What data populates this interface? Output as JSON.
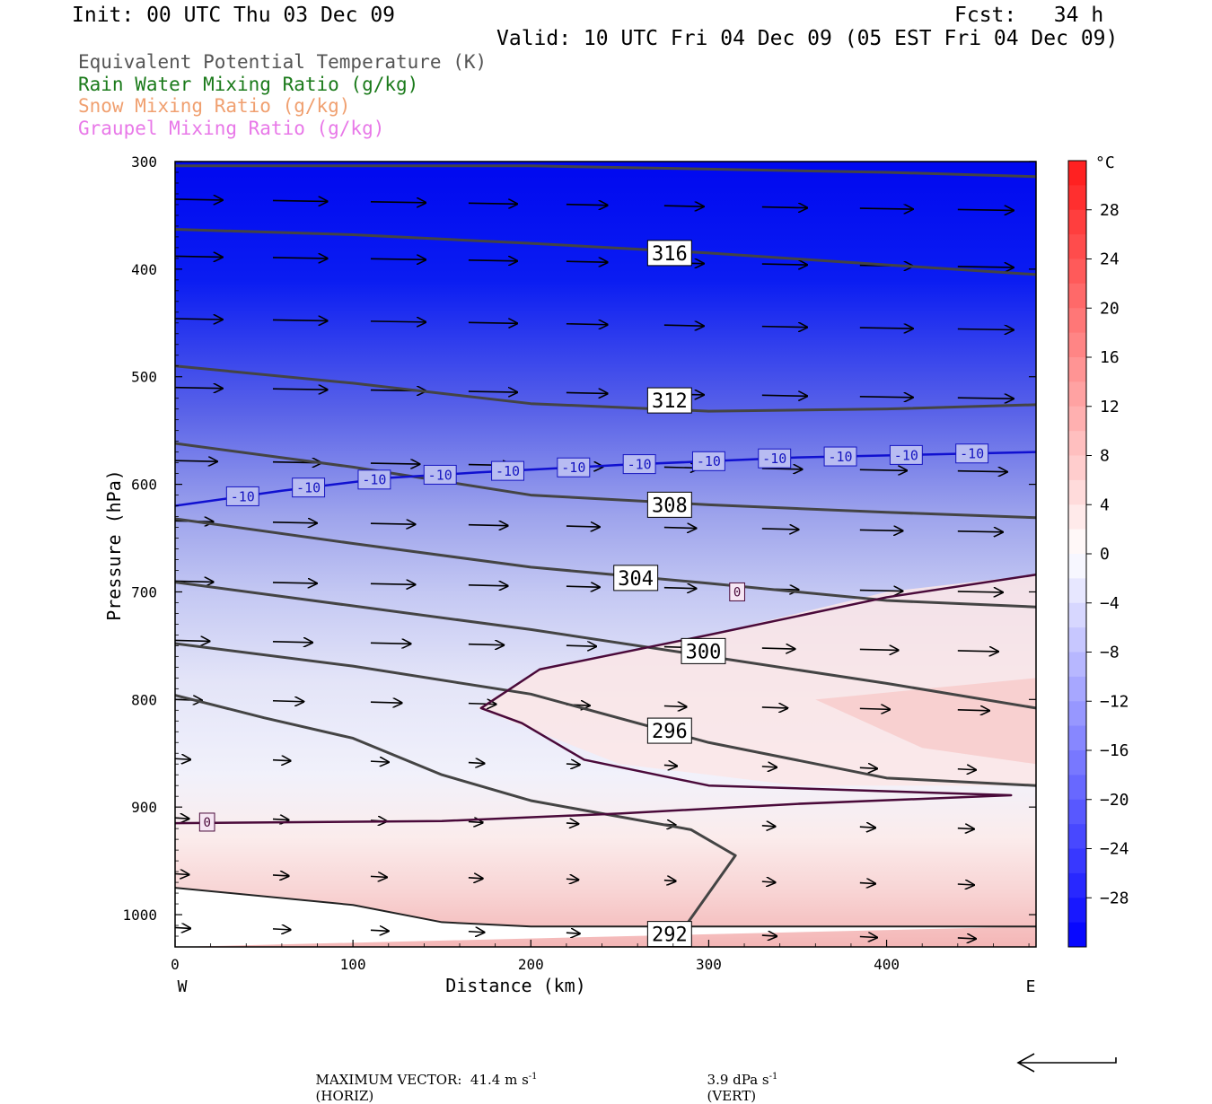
{
  "header": {
    "init": "Init: 00 UTC Thu 03 Dec 09",
    "fcst": "Fcst:   34 h",
    "valid": "Valid: 10 UTC Fri 04 Dec 09 (05 EST Fri 04 Dec 09)"
  },
  "legend": [
    {
      "label": "Equivalent Potential Temperature (K)",
      "color": "#555555"
    },
    {
      "label": "Rain Water Mixing Ratio (g/kg)",
      "color": "#1a7a1a"
    },
    {
      "label": "Snow Mixing Ratio (g/kg)",
      "color": "#f0a070"
    },
    {
      "label": "Graupel Mixing Ratio (g/kg)",
      "color": "#e878e8"
    }
  ],
  "chart_data": {
    "type": "heatmap",
    "title": "",
    "xlabel": "Distance (km)",
    "ylabel": "Pressure (hPa)",
    "x_ticks": [
      0,
      100,
      200,
      300,
      400
    ],
    "y_ticks": [
      300,
      400,
      500,
      600,
      700,
      800,
      900,
      1000
    ],
    "xlim": [
      0,
      484
    ],
    "ylim": [
      300,
      1030
    ],
    "y_inverted": true,
    "x_end_labels": {
      "left": "W",
      "right": "E"
    },
    "colorbar": {
      "unit": "°C",
      "ticks": [
        28,
        24,
        20,
        16,
        12,
        8,
        4,
        0,
        -4,
        -8,
        -12,
        -16,
        -20,
        -24,
        -28
      ],
      "range": [
        -32,
        32
      ],
      "cold_color": "#0000ff",
      "warm_color": "#ff1a1a"
    },
    "theta_e_contours": [
      {
        "label": "316",
        "points": [
          [
            0,
            363
          ],
          [
            100,
            368
          ],
          [
            200,
            376
          ],
          [
            300,
            385
          ],
          [
            400,
            396
          ],
          [
            484,
            405
          ]
        ],
        "label_at": [
          278,
          385
        ]
      },
      {
        "label": "312",
        "points": [
          [
            0,
            490
          ],
          [
            100,
            506
          ],
          [
            200,
            525
          ],
          [
            300,
            532
          ],
          [
            400,
            530
          ],
          [
            484,
            526
          ]
        ],
        "label_at": [
          278,
          522
        ]
      },
      {
        "label": "308",
        "points": [
          [
            0,
            562
          ],
          [
            100,
            584
          ],
          [
            200,
            610
          ],
          [
            300,
            619
          ],
          [
            400,
            626
          ],
          [
            484,
            631
          ]
        ],
        "label_at": [
          278,
          619
        ]
      },
      {
        "label": "304",
        "points": [
          [
            0,
            632
          ],
          [
            100,
            655
          ],
          [
            200,
            677
          ],
          [
            300,
            692
          ],
          [
            400,
            708
          ],
          [
            484,
            714
          ]
        ],
        "label_at": [
          259,
          687
        ]
      },
      {
        "label": "300",
        "points": [
          [
            0,
            691
          ],
          [
            100,
            713
          ],
          [
            200,
            735
          ],
          [
            300,
            760
          ],
          [
            400,
            785
          ],
          [
            484,
            808
          ]
        ],
        "label_at": [
          297,
          755
        ]
      },
      {
        "label": "296",
        "points": [
          [
            0,
            748
          ],
          [
            100,
            769
          ],
          [
            200,
            795
          ],
          [
            300,
            840
          ],
          [
            400,
            873
          ],
          [
            484,
            880
          ]
        ],
        "label_at": [
          278,
          829
        ]
      },
      {
        "label": "292",
        "points": [
          [
            0,
            796
          ],
          [
            50,
            817
          ],
          [
            100,
            836
          ],
          [
            150,
            870
          ],
          [
            200,
            894
          ],
          [
            290,
            921
          ],
          [
            315,
            945
          ],
          [
            285,
            1015
          ]
        ],
        "label_at": [
          278,
          1018
        ]
      }
    ],
    "theta_e_top_contour": {
      "points": [
        [
          0,
          304
        ],
        [
          200,
          304
        ],
        [
          400,
          310
        ],
        [
          484,
          314
        ]
      ]
    },
    "theta_e_bottom_contour": {
      "points": [
        [
          0,
          975
        ],
        [
          100,
          991
        ],
        [
          150,
          1007
        ],
        [
          200,
          1011
        ],
        [
          484,
          1011
        ]
      ]
    },
    "isotherm_minus10": {
      "label": "-10",
      "points": [
        [
          0,
          620
        ],
        [
          60,
          606
        ],
        [
          120,
          594
        ],
        [
          170,
          589
        ],
        [
          250,
          582
        ],
        [
          350,
          575
        ],
        [
          484,
          570
        ]
      ],
      "label_xs": [
        38,
        75,
        112,
        149,
        187,
        224,
        261,
        300,
        337,
        374,
        411,
        448
      ]
    },
    "freezing_line": {
      "label": "0",
      "points": [
        [
          0,
          915
        ],
        [
          150,
          913
        ],
        [
          250,
          906
        ],
        [
          350,
          897
        ],
        [
          470,
          889
        ],
        [
          300,
          880
        ],
        [
          230,
          856
        ],
        [
          195,
          822
        ],
        [
          172,
          808
        ],
        [
          205,
          772
        ],
        [
          300,
          740
        ],
        [
          400,
          705
        ],
        [
          484,
          684
        ]
      ],
      "label_positions": [
        [
          18,
          914
        ],
        [
          316,
          700
        ]
      ]
    },
    "wind_max_vector": {
      "text": "MAXIMUM VECTOR:  41.4 m s",
      "horiz_unit": "(HORIZ)",
      "vert_text": "3.9 dPa s",
      "vert_unit": "(VERT)",
      "exponent": "-1"
    }
  }
}
